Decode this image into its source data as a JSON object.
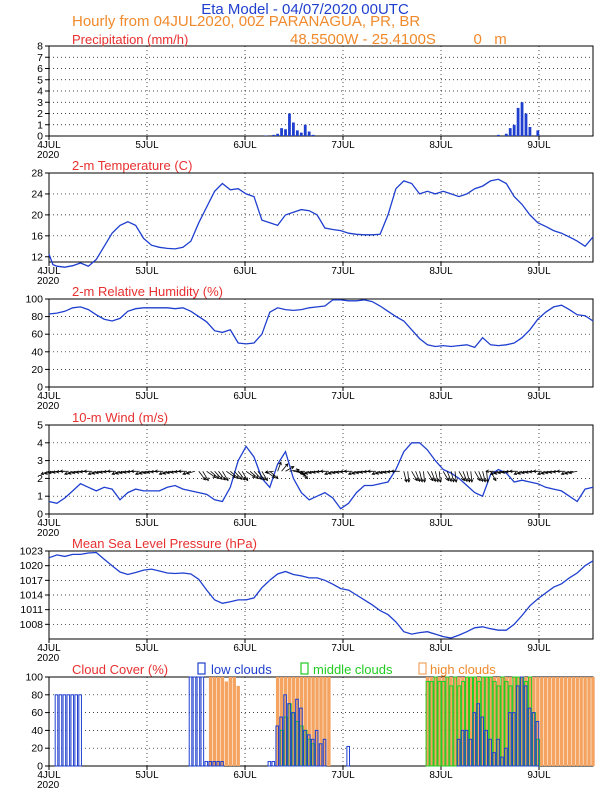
{
  "header": {
    "title": "Eta Model - 04/07/2020 00UTC",
    "line2": "Hourly from 04JUL2020, 00Z  PARANAGUA, PR, BR",
    "line3": "48.5500W - 25.4100S         0   m"
  },
  "colors": {
    "title": "#1f3fcf",
    "subtitle": "#f08a2c",
    "panel_title": "#e83030",
    "series": "#1f3fcf",
    "low_clouds": "#1f3fcf",
    "middle_clouds": "#22cc22",
    "high_clouds": "#f4a460"
  },
  "axis": {
    "x_labels": [
      "4JUL",
      "5JUL",
      "6JUL",
      "7JUL",
      "8JUL",
      "9JUL"
    ],
    "x_year": "2020"
  },
  "chart_data": [
    {
      "type": "bar",
      "title": "Precipitation (mm/h)",
      "ylim": [
        0,
        8
      ],
      "yticks": [
        0,
        1,
        2,
        3,
        4,
        5,
        6,
        7,
        8
      ],
      "x": [
        55,
        57,
        58,
        59,
        60,
        61,
        62,
        63,
        64,
        65,
        66,
        67,
        114,
        116,
        117,
        118,
        119,
        120,
        121,
        122,
        124
      ],
      "values": [
        0.05,
        0.1,
        0.2,
        0.7,
        0.6,
        2.0,
        1.2,
        0.5,
        0.3,
        1.0,
        0.4,
        0.1,
        0.1,
        0.2,
        0.7,
        1.0,
        2.5,
        3.0,
        2.0,
        0.8,
        0.5
      ]
    },
    {
      "type": "line",
      "title": "2-m Temperature (C)",
      "ylim": [
        11,
        28
      ],
      "yticks": [
        12,
        16,
        20,
        24,
        28
      ],
      "x": [
        0,
        1,
        2,
        4,
        6,
        8,
        10,
        12,
        14,
        16,
        18,
        20,
        22,
        24,
        26,
        28,
        30,
        32,
        34,
        36,
        38,
        40,
        42,
        44,
        46,
        48,
        50,
        52,
        54,
        56,
        58,
        60,
        62,
        64,
        66,
        68,
        70,
        72,
        74,
        76,
        78,
        80,
        82,
        84,
        86,
        88,
        90,
        92,
        94,
        96,
        98,
        100,
        102,
        104,
        106,
        108,
        110,
        112,
        114,
        116,
        118,
        120,
        122,
        124,
        126,
        128,
        130,
        132,
        134,
        136,
        138
      ],
      "values": [
        12.5,
        10.5,
        10.2,
        10.0,
        10.3,
        10.8,
        10.2,
        11.5,
        14.0,
        16.5,
        18.0,
        18.7,
        18.0,
        15.5,
        14.2,
        13.8,
        13.6,
        13.5,
        13.8,
        15.0,
        18.5,
        21.5,
        24.5,
        26.0,
        24.8,
        25.0,
        24.0,
        23.5,
        19.0,
        18.5,
        18.0,
        20.0,
        20.5,
        21.0,
        20.8,
        20.0,
        17.5,
        17.2,
        17.0,
        16.5,
        16.3,
        16.2,
        16.2,
        16.3,
        20.0,
        25.0,
        26.5,
        26.0,
        24.0,
        24.5,
        24.0,
        24.5,
        24.0,
        23.5,
        24.0,
        25.0,
        25.5,
        26.5,
        26.8,
        26.0,
        23.5,
        22.0,
        20.0,
        18.5,
        17.8,
        17.0,
        16.5,
        15.8,
        15.0,
        14.0,
        15.8
      ]
    },
    {
      "type": "line",
      "title": "2-m Relative Humidity (%)",
      "ylim": [
        0,
        100
      ],
      "yticks": [
        0,
        20,
        40,
        60,
        80,
        100
      ],
      "x": [
        0,
        2,
        4,
        6,
        8,
        10,
        12,
        14,
        16,
        18,
        20,
        22,
        24,
        26,
        28,
        30,
        32,
        34,
        36,
        38,
        40,
        42,
        44,
        46,
        48,
        50,
        52,
        54,
        56,
        58,
        60,
        62,
        64,
        66,
        68,
        70,
        72,
        74,
        76,
        78,
        80,
        82,
        84,
        86,
        88,
        90,
        92,
        94,
        96,
        98,
        100,
        102,
        104,
        106,
        108,
        110,
        112,
        114,
        116,
        118,
        120,
        122,
        124,
        126,
        128,
        130,
        132,
        134,
        136,
        138
      ],
      "values": [
        83,
        84,
        86,
        90,
        91,
        88,
        82,
        77,
        75,
        78,
        86,
        89,
        90,
        90,
        90,
        90,
        89,
        90,
        86,
        80,
        74,
        64,
        62,
        65,
        50,
        49,
        50,
        60,
        85,
        90,
        88,
        87,
        88,
        90,
        91,
        92,
        99,
        99,
        98,
        98,
        99,
        97,
        92,
        86,
        80,
        75,
        65,
        55,
        48,
        46,
        47,
        46,
        47,
        48,
        45,
        56,
        48,
        47,
        48,
        50,
        56,
        65,
        77,
        85,
        91,
        93,
        88,
        82,
        81,
        75
      ]
    },
    {
      "type": "line",
      "title": "10-m Wind (m/s)",
      "ylim": [
        0,
        5
      ],
      "yticks": [
        0,
        1,
        2,
        3,
        4,
        5
      ],
      "x": [
        0,
        2,
        4,
        6,
        8,
        10,
        12,
        14,
        16,
        18,
        20,
        22,
        24,
        26,
        28,
        30,
        32,
        34,
        36,
        38,
        40,
        42,
        44,
        46,
        48,
        50,
        52,
        54,
        56,
        58,
        60,
        62,
        64,
        66,
        68,
        70,
        72,
        74,
        76,
        78,
        80,
        82,
        84,
        86,
        88,
        90,
        92,
        94,
        96,
        98,
        100,
        102,
        104,
        106,
        108,
        110,
        112,
        114,
        116,
        118,
        120,
        122,
        124,
        126,
        128,
        130,
        132,
        134,
        136,
        138
      ],
      "values": [
        0.7,
        0.6,
        0.9,
        1.3,
        1.7,
        1.5,
        1.3,
        1.5,
        1.4,
        0.8,
        1.2,
        1.4,
        1.3,
        1.3,
        1.3,
        1.5,
        1.6,
        1.4,
        1.3,
        1.2,
        1.1,
        0.8,
        0.7,
        1.5,
        3.0,
        3.8,
        3.2,
        2.0,
        1.5,
        2.8,
        3.5,
        2.0,
        1.2,
        0.8,
        1.0,
        1.2,
        0.9,
        0.3,
        0.6,
        1.2,
        1.6,
        1.6,
        1.7,
        1.8,
        2.5,
        3.5,
        4.0,
        4.0,
        3.6,
        3.0,
        2.5,
        2.3,
        2.0,
        1.6,
        1.2,
        1.0,
        2.2,
        2.5,
        2.3,
        1.8,
        1.9,
        1.8,
        1.7,
        1.5,
        1.4,
        1.3,
        1.0,
        0.7,
        1.4,
        1.5
      ]
    },
    {
      "type": "line",
      "title": "Mean Sea Level Pressure (hPa)",
      "ylim": [
        1005,
        1023
      ],
      "yticks": [
        1008,
        1011,
        1014,
        1017,
        1020,
        1023
      ],
      "x": [
        0,
        2,
        4,
        6,
        8,
        10,
        12,
        14,
        16,
        18,
        20,
        22,
        24,
        26,
        28,
        30,
        32,
        34,
        36,
        38,
        40,
        42,
        44,
        46,
        48,
        50,
        52,
        54,
        56,
        58,
        60,
        62,
        64,
        66,
        68,
        70,
        72,
        74,
        76,
        78,
        80,
        82,
        84,
        86,
        88,
        90,
        92,
        94,
        96,
        98,
        100,
        102,
        104,
        106,
        108,
        110,
        112,
        114,
        116,
        118,
        120,
        122,
        124,
        126,
        128,
        130,
        132,
        134,
        136,
        138
      ],
      "values": [
        1021.6,
        1022.2,
        1021.9,
        1022.3,
        1022.3,
        1022.6,
        1022.7,
        1021.3,
        1020.0,
        1018.7,
        1018.2,
        1018.6,
        1019.1,
        1019.3,
        1018.9,
        1018.5,
        1018.4,
        1018.5,
        1018.3,
        1017.2,
        1015.0,
        1013.0,
        1012.3,
        1012.6,
        1013.0,
        1013.0,
        1013.4,
        1015.5,
        1017.0,
        1018.3,
        1018.8,
        1018.2,
        1017.9,
        1017.5,
        1017.5,
        1017.0,
        1016.2,
        1015.3,
        1015.0,
        1014.0,
        1013.0,
        1012.0,
        1010.8,
        1010.0,
        1008.5,
        1006.5,
        1006.0,
        1006.3,
        1006.5,
        1006.0,
        1005.5,
        1005.2,
        1005.8,
        1006.5,
        1007.3,
        1007.5,
        1007.1,
        1006.8,
        1006.8,
        1008.0,
        1009.8,
        1011.8,
        1013.2,
        1014.4,
        1015.6,
        1016.3,
        1017.5,
        1018.5,
        1020.0,
        1021.0
      ]
    },
    {
      "type": "bar",
      "title": "Cloud Cover (%)",
      "legend": [
        "low clouds",
        "middle clouds",
        "high clouds"
      ],
      "ylim": [
        0,
        100
      ],
      "yticks": [
        0,
        20,
        40,
        60,
        80,
        100
      ],
      "high": {
        "x": [
          41,
          42,
          43,
          44,
          45,
          46,
          47,
          48,
          58,
          59,
          60,
          61,
          62,
          63,
          64,
          65,
          66,
          67,
          68,
          69,
          70,
          71,
          96,
          97,
          98,
          99,
          100,
          101,
          102,
          103,
          104,
          105,
          106,
          107,
          108,
          109,
          110,
          111,
          112,
          113,
          114,
          115,
          116,
          117,
          118,
          119,
          120,
          121,
          122,
          123,
          124,
          125,
          126,
          127,
          128,
          129,
          130,
          131,
          132,
          133,
          134,
          135,
          136,
          137,
          138
        ],
        "values": [
          100,
          100,
          100,
          100,
          95,
          100,
          100,
          90,
          100,
          100,
          100,
          100,
          100,
          100,
          100,
          100,
          100,
          100,
          100,
          100,
          100,
          100,
          100,
          100,
          100,
          100,
          100,
          100,
          100,
          100,
          100,
          100,
          100,
          100,
          100,
          100,
          100,
          100,
          100,
          100,
          100,
          100,
          100,
          100,
          100,
          100,
          100,
          100,
          100,
          100,
          100,
          100,
          100,
          100,
          100,
          100,
          100,
          100,
          100,
          100,
          100,
          100,
          100,
          100,
          100
        ]
      },
      "mid": {
        "x": [
          59,
          60,
          61,
          62,
          63,
          64,
          65,
          66,
          67,
          96,
          97,
          98,
          99,
          100,
          101,
          102,
          103,
          104,
          105,
          106,
          107,
          108,
          109,
          110,
          111,
          112,
          113,
          114,
          115,
          116,
          117,
          118,
          119,
          120,
          121,
          122,
          123,
          124
        ],
        "values": [
          40,
          55,
          70,
          60,
          50,
          45,
          40,
          30,
          25,
          95,
          95,
          100,
          95,
          95,
          100,
          90,
          100,
          90,
          95,
          100,
          100,
          100,
          95,
          100,
          100,
          100,
          95,
          90,
          100,
          95,
          90,
          100,
          100,
          100,
          95,
          100,
          60,
          30
        ]
      },
      "low": {
        "x": [
          2,
          3,
          4,
          5,
          6,
          7,
          8,
          36,
          37,
          38,
          39,
          40,
          41,
          42,
          43,
          44,
          56,
          57,
          58,
          59,
          60,
          61,
          62,
          63,
          64,
          65,
          66,
          67,
          68,
          69,
          70,
          76,
          104,
          105,
          106,
          107,
          108,
          109,
          110,
          111,
          112,
          113,
          114,
          115,
          116,
          117,
          118,
          119,
          120,
          121,
          122,
          123,
          124
        ],
        "values": [
          80,
          80,
          80,
          80,
          80,
          80,
          80,
          100,
          100,
          100,
          100,
          5,
          5,
          5,
          5,
          5,
          5,
          5,
          45,
          55,
          80,
          70,
          60,
          75,
          65,
          40,
          35,
          30,
          40,
          25,
          30,
          22,
          30,
          40,
          40,
          30,
          60,
          70,
          55,
          40,
          30,
          15,
          30,
          10,
          20,
          60,
          60,
          90,
          100,
          90,
          65,
          60,
          50
        ]
      }
    }
  ]
}
